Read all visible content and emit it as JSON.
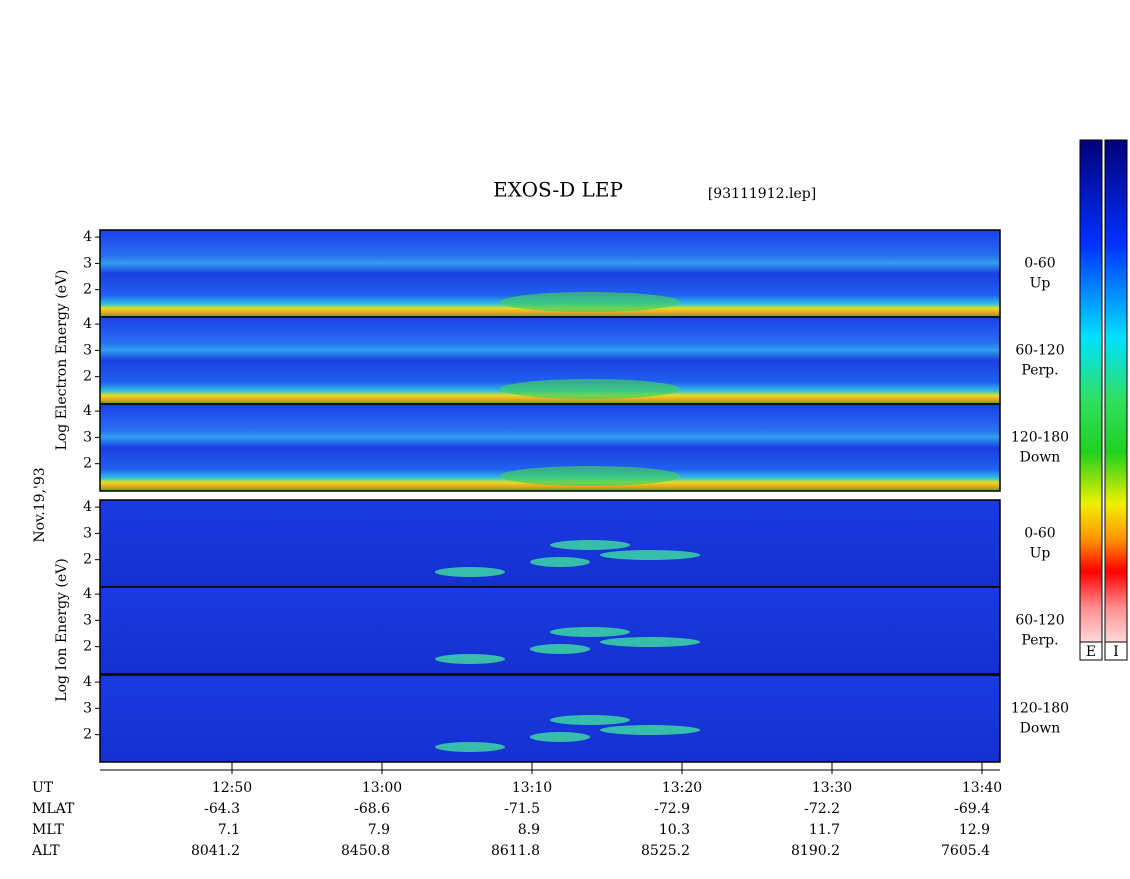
{
  "title": "EXOS-D LEP",
  "file": "[93111912.lep]",
  "date": "Nov.19,'93",
  "electron_label": "Log Electron Energy (eV)",
  "ion_label": "Log Ion Energy (eV)",
  "panels": [
    {
      "range": "0-60",
      "direction": "Up"
    },
    {
      "range": "60-120",
      "direction": "Perp."
    },
    {
      "range": "120-180",
      "direction": "Down"
    }
  ],
  "ylim": [
    0.96,
    4.27
  ],
  "yticks": [
    2,
    3,
    4
  ],
  "xlim": [
    761.2,
    821.2
  ],
  "xticks": [
    {
      "value": 770,
      "label": "12:50"
    },
    {
      "value": 780,
      "label": "13:00"
    },
    {
      "value": 790,
      "label": "13:10"
    },
    {
      "value": 800,
      "label": "13:20"
    },
    {
      "value": 810,
      "label": "13:30"
    },
    {
      "value": 820,
      "label": "13:40"
    }
  ],
  "ut_label": "UT",
  "ephemeris": [
    {
      "name": "MLAT",
      "values": [
        -64.3,
        -68.6,
        -71.5,
        -72.9,
        -72.2,
        -69.4
      ]
    },
    {
      "name": "MLT",
      "values": [
        7.1,
        7.9,
        8.9,
        10.3,
        11.7,
        12.9
      ]
    },
    {
      "name": "ALT",
      "values": [
        8041.2,
        8450.8,
        8611.8,
        8525.2,
        8190.2,
        7605.4
      ]
    }
  ],
  "colorbars": [
    "E",
    "I"
  ]
}
